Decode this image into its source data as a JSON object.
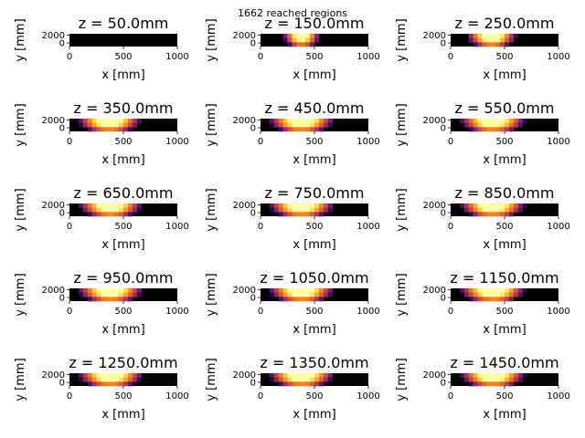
{
  "figure": {
    "suptitle": "1662 reached regions"
  },
  "chart_data": {
    "type": "heatmap",
    "colormap": "inferno",
    "background_color": "#000000",
    "xlabel": "x [mm]",
    "ylabel": "y [mm]",
    "xlim": [
      0,
      1000
    ],
    "xticks": [
      "0",
      "500",
      "1000"
    ],
    "yticks": [
      "0",
      "2000"
    ],
    "panels": [
      {
        "z": "50.0",
        "title": "z = 50.0mm",
        "hot_spot": {
          "x_center": 0,
          "x_halfwidth": 0,
          "peak_intensity": 0.0
        }
      },
      {
        "z": "150.0",
        "title": "z = 150.0mm",
        "hot_spot": {
          "x_center": 380,
          "x_halfwidth": 170,
          "peak_intensity": 0.95
        }
      },
      {
        "z": "250.0",
        "title": "z = 250.0mm",
        "hot_spot": {
          "x_center": 380,
          "x_halfwidth": 230,
          "peak_intensity": 1.0
        }
      },
      {
        "z": "350.0",
        "title": "z = 350.0mm",
        "hot_spot": {
          "x_center": 370,
          "x_halfwidth": 290,
          "peak_intensity": 1.0
        }
      },
      {
        "z": "450.0",
        "title": "z = 450.0mm",
        "hot_spot": {
          "x_center": 380,
          "x_halfwidth": 300,
          "peak_intensity": 1.0
        }
      },
      {
        "z": "550.0",
        "title": "z = 550.0mm",
        "hot_spot": {
          "x_center": 390,
          "x_halfwidth": 300,
          "peak_intensity": 1.0
        }
      },
      {
        "z": "650.0",
        "title": "z = 650.0mm",
        "hot_spot": {
          "x_center": 380,
          "x_halfwidth": 290,
          "peak_intensity": 1.0
        }
      },
      {
        "z": "750.0",
        "title": "z = 750.0mm",
        "hot_spot": {
          "x_center": 380,
          "x_halfwidth": 300,
          "peak_intensity": 1.0
        }
      },
      {
        "z": "850.0",
        "title": "z = 850.0mm",
        "hot_spot": {
          "x_center": 390,
          "x_halfwidth": 300,
          "peak_intensity": 1.0
        }
      },
      {
        "z": "950.0",
        "title": "z = 950.0mm",
        "hot_spot": {
          "x_center": 380,
          "x_halfwidth": 300,
          "peak_intensity": 1.0
        }
      },
      {
        "z": "1050.0",
        "title": "z = 1050.0mm",
        "hot_spot": {
          "x_center": 380,
          "x_halfwidth": 300,
          "peak_intensity": 1.0
        }
      },
      {
        "z": "1150.0",
        "title": "z = 1150.0mm",
        "hot_spot": {
          "x_center": 390,
          "x_halfwidth": 300,
          "peak_intensity": 1.0
        }
      },
      {
        "z": "1250.0",
        "title": "z = 1250.0mm",
        "hot_spot": {
          "x_center": 380,
          "x_halfwidth": 300,
          "peak_intensity": 1.0
        }
      },
      {
        "z": "1350.0",
        "title": "z = 1350.0mm",
        "hot_spot": {
          "x_center": 380,
          "x_halfwidth": 300,
          "peak_intensity": 1.0
        }
      },
      {
        "z": "1450.0",
        "title": "z = 1450.0mm",
        "hot_spot": {
          "x_center": 390,
          "x_halfwidth": 300,
          "peak_intensity": 1.0
        }
      }
    ]
  }
}
